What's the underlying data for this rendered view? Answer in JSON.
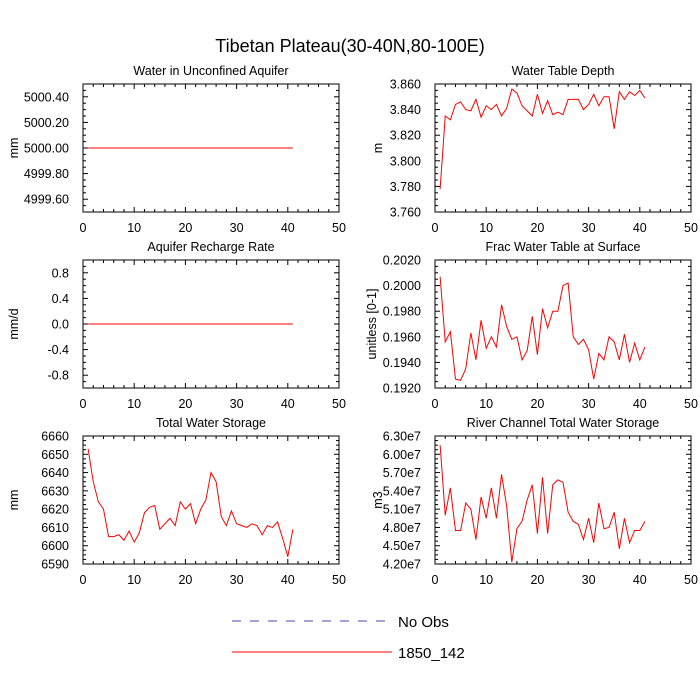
{
  "figure_title": "Tibetan Plateau(30-40N,80-100E)",
  "legend": [
    {
      "label": "No Obs",
      "color": "#4a4ab8",
      "dash": true
    },
    {
      "label": "1850_142",
      "color": "#ff0000",
      "dash": false
    }
  ],
  "chart_data": [
    {
      "type": "line",
      "title": "Water in Unconfined Aquifer",
      "ylabel": "mm",
      "xlim": [
        0,
        50
      ],
      "ylim": [
        4999.5,
        5000.5
      ],
      "xticks": [
        "0",
        "10",
        "20",
        "30",
        "40",
        "50"
      ],
      "yticks": [
        "4999.60",
        "4999.80",
        "5000.00",
        "5000.20",
        "5000.40"
      ],
      "yticks_values": [
        4999.6,
        4999.8,
        5000.0,
        5000.2,
        5000.4
      ],
      "series": [
        {
          "values": [
            5000,
            5000,
            5000,
            5000,
            5000,
            5000,
            5000,
            5000,
            5000,
            5000,
            5000,
            5000,
            5000,
            5000,
            5000,
            5000,
            5000,
            5000,
            5000,
            5000,
            5000,
            5000,
            5000,
            5000,
            5000,
            5000,
            5000,
            5000,
            5000,
            5000,
            5000,
            5000,
            5000,
            5000,
            5000,
            5000,
            5000,
            5000,
            5000,
            5000,
            5000
          ]
        }
      ]
    },
    {
      "type": "line",
      "title": "Water Table Depth",
      "ylabel": "m",
      "xlim": [
        0,
        50
      ],
      "ylim": [
        3.76,
        3.86
      ],
      "xticks": [
        "0",
        "10",
        "20",
        "30",
        "40",
        "50"
      ],
      "yticks": [
        "3.760",
        "3.780",
        "3.800",
        "3.820",
        "3.840",
        "3.860"
      ],
      "yticks_values": [
        3.76,
        3.78,
        3.8,
        3.82,
        3.84,
        3.86
      ],
      "series": [
        {
          "values": [
            3.778,
            3.835,
            3.832,
            3.844,
            3.846,
            3.84,
            3.839,
            3.848,
            3.834,
            3.843,
            3.84,
            3.844,
            3.835,
            3.841,
            3.856,
            3.853,
            3.843,
            3.839,
            3.835,
            3.852,
            3.837,
            3.847,
            3.836,
            3.838,
            3.836,
            3.848,
            3.848,
            3.848,
            3.84,
            3.844,
            3.852,
            3.843,
            3.85,
            3.85,
            3.825,
            3.854,
            3.848,
            3.854,
            3.851,
            3.855,
            3.849
          ]
        }
      ]
    },
    {
      "type": "line",
      "title": "Aquifer Recharge Rate",
      "ylabel": "mm/d",
      "xlim": [
        0,
        50
      ],
      "ylim": [
        -1.0,
        1.0
      ],
      "xticks": [
        "0",
        "10",
        "20",
        "30",
        "40",
        "50"
      ],
      "yticks": [
        "-0.8",
        "-0.4",
        "0.0",
        "0.4",
        "0.8"
      ],
      "yticks_values": [
        -0.8,
        -0.4,
        0.0,
        0.4,
        0.8
      ],
      "series": [
        {
          "values": [
            0,
            0,
            0,
            0,
            0,
            0,
            0,
            0,
            0,
            0,
            0,
            0,
            0,
            0,
            0,
            0,
            0,
            0,
            0,
            0,
            0,
            0,
            0,
            0,
            0,
            0,
            0,
            0,
            0,
            0,
            0,
            0,
            0,
            0,
            0,
            0,
            0,
            0,
            0,
            0,
            0
          ]
        }
      ]
    },
    {
      "type": "line",
      "title": "Frac Water Table at Surface",
      "ylabel": "unitless [0-1]",
      "xlim": [
        0,
        50
      ],
      "ylim": [
        0.192,
        0.202
      ],
      "xticks": [
        "0",
        "10",
        "20",
        "30",
        "40",
        "50"
      ],
      "yticks": [
        "0.1920",
        "0.1940",
        "0.1960",
        "0.1980",
        "0.2000",
        "0.2020"
      ],
      "yticks_values": [
        0.192,
        0.194,
        0.196,
        0.198,
        0.2,
        0.202
      ],
      "series": [
        {
          "values": [
            0.2007,
            0.1956,
            0.1964,
            0.1927,
            0.1926,
            0.1935,
            0.1963,
            0.1942,
            0.1973,
            0.1951,
            0.196,
            0.1952,
            0.1985,
            0.1968,
            0.1958,
            0.196,
            0.1942,
            0.1949,
            0.1976,
            0.1946,
            0.1982,
            0.1967,
            0.198,
            0.198,
            0.2,
            0.2002,
            0.196,
            0.1954,
            0.1958,
            0.195,
            0.1927,
            0.1947,
            0.1942,
            0.196,
            0.1956,
            0.1942,
            0.1962,
            0.194,
            0.1955,
            0.1942,
            0.1952
          ]
        }
      ]
    },
    {
      "type": "line",
      "title": "Total Water Storage",
      "ylabel": "mm",
      "xlim": [
        0,
        50
      ],
      "ylim": [
        6590,
        6660
      ],
      "xticks": [
        "0",
        "10",
        "20",
        "30",
        "40",
        "50"
      ],
      "yticks": [
        "6590",
        "6600",
        "6610",
        "6620",
        "6630",
        "6640",
        "6650",
        "6660"
      ],
      "yticks_values": [
        6590,
        6600,
        6610,
        6620,
        6630,
        6640,
        6650,
        6660
      ],
      "series": [
        {
          "values": [
            6653,
            6635,
            6624,
            6620,
            6605,
            6605,
            6606,
            6603,
            6608,
            6602,
            6607,
            6618,
            6621,
            6622,
            6609,
            6612,
            6615,
            6611,
            6624,
            6620,
            6623,
            6612,
            6620,
            6625,
            6640,
            6635,
            6616,
            6611,
            6619,
            6612,
            6611,
            6610,
            6612,
            6611,
            6606,
            6611,
            6610,
            6613,
            6604,
            6594,
            6609
          ]
        }
      ]
    },
    {
      "type": "line",
      "title": "River Channel Total Water Storage",
      "ylabel": "m3",
      "xlim": [
        0,
        50
      ],
      "ylim": [
        42000000,
        63000000
      ],
      "xticks": [
        "0",
        "10",
        "20",
        "30",
        "40",
        "50"
      ],
      "yticks": [
        "4.20e7",
        "4.50e7",
        "4.80e7",
        "5.10e7",
        "5.40e7",
        "5.70e7",
        "6.00e7",
        "6.30e7"
      ],
      "yticks_values": [
        42000000,
        45000000,
        48000000,
        51000000,
        54000000,
        57000000,
        60000000,
        63000000
      ],
      "series": [
        {
          "values": [
            61500000,
            50000000,
            54500000,
            47500000,
            47500000,
            52000000,
            51000000,
            46000000,
            53000000,
            49500000,
            54500000,
            49500000,
            56700000,
            51500000,
            42300000,
            47800000,
            49000000,
            52500000,
            55000000,
            47000000,
            56200000,
            47000000,
            55000000,
            55800000,
            55400000,
            50500000,
            49000000,
            48500000,
            46000000,
            49500000,
            45500000,
            52000000,
            47800000,
            48000000,
            50500000,
            44500000,
            49500000,
            45500000,
            47500000,
            47500000,
            49000000
          ]
        }
      ]
    }
  ]
}
